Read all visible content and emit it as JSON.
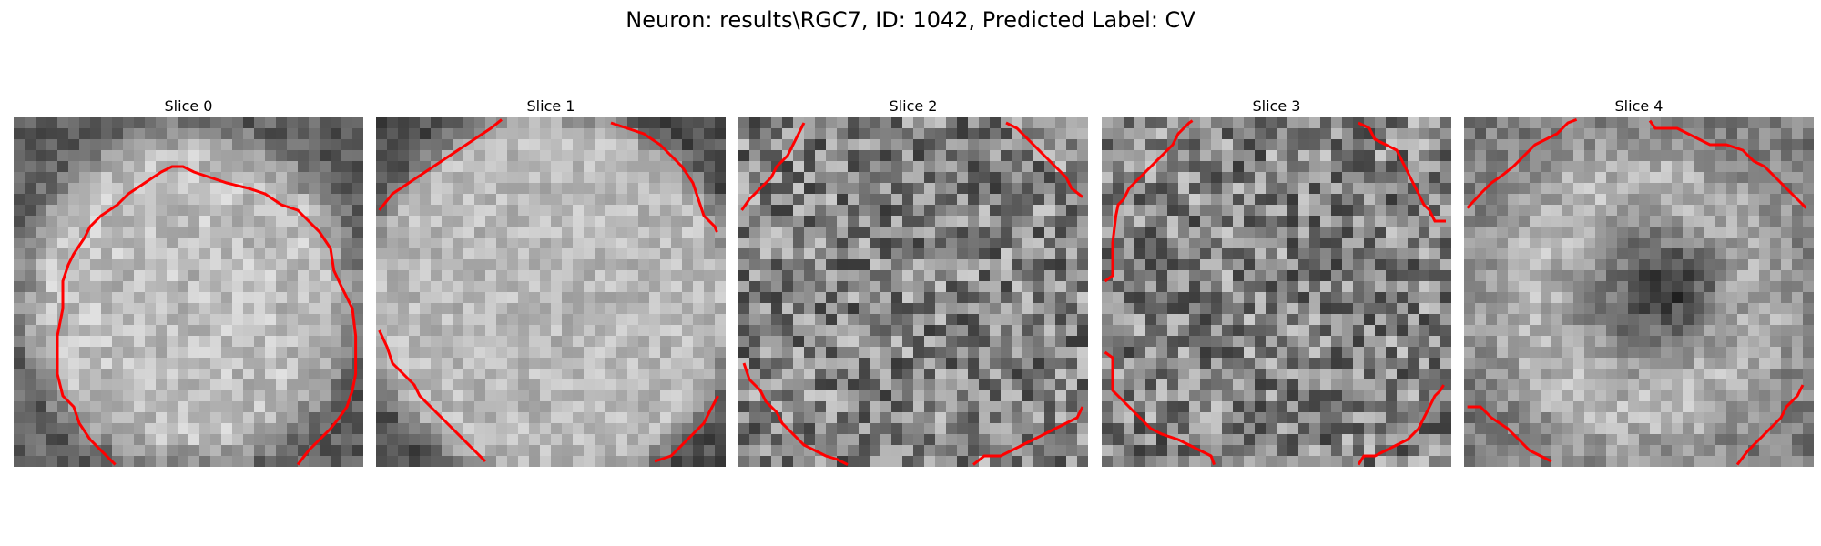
{
  "figure": {
    "title": "Neuron: results\\RGC7, ID: 1042, Predicted Label: CV",
    "contour_color": "#ff0000",
    "grid_size": 32
  },
  "slices": [
    {
      "title": "Slice 0",
      "pattern": "bright-disk-center"
    },
    {
      "title": "Slice 1",
      "pattern": "bright-disk-large"
    },
    {
      "title": "Slice 2",
      "pattern": "noise-uniform"
    },
    {
      "title": "Slice 3",
      "pattern": "noise-uniform"
    },
    {
      "title": "Slice 4",
      "pattern": "ring-dark-center"
    }
  ]
}
